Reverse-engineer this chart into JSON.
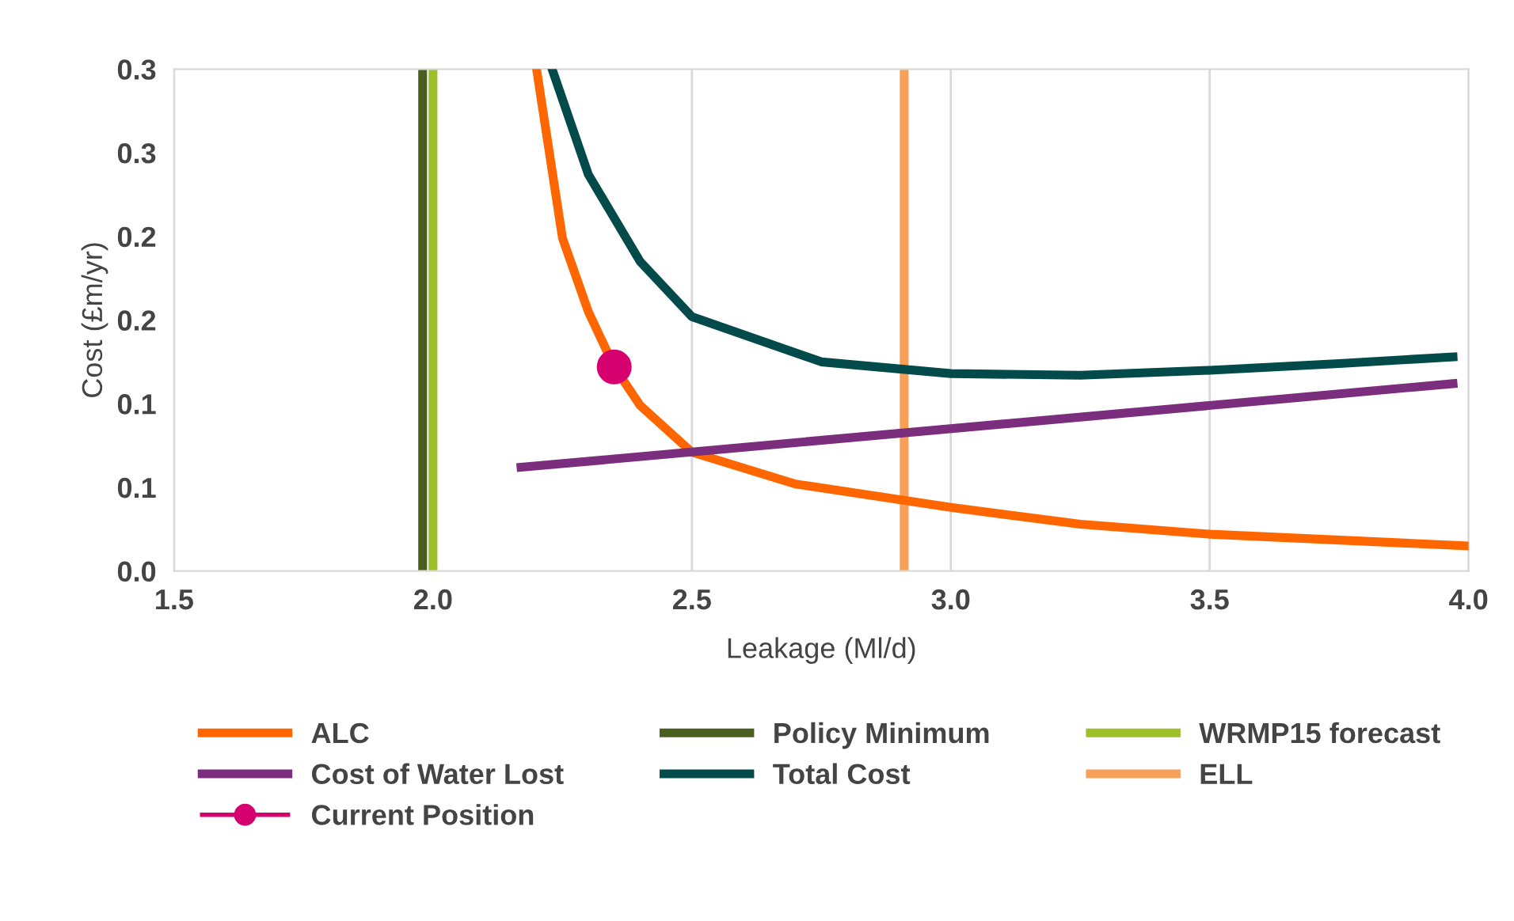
{
  "chart_data": {
    "type": "line",
    "xlabel": "Leakage (Ml/d)",
    "ylabel": "Cost (£m/yr)",
    "xlim": [
      1.5,
      4.0
    ],
    "xticks": [
      1.5,
      {
        "value": 2,
        "label": "2.0"
      },
      2.5,
      {
        "value": 3,
        "label": "3.0"
      },
      3.5,
      {
        "value": 4,
        "label": "4.0"
      }
    ],
    "ylim": [
      0,
      0.3
    ],
    "yticks": [
      {
        "value": 0,
        "label": "0.0"
      },
      {
        "value": 0.05,
        "label": "0.1"
      },
      {
        "value": 0.1,
        "label": "0.1"
      },
      {
        "value": 0.15,
        "label": "0.2"
      },
      {
        "value": 0.2,
        "label": "0.2"
      },
      {
        "value": 0.25,
        "label": "0.3"
      },
      {
        "value": 0.3,
        "label": "0.3"
      }
    ],
    "grid": "x",
    "legend": "bottom",
    "marker": "none",
    "series": [
      {
        "name": "ALC",
        "color": "#ff6600",
        "x": [
          2.2,
          2.25,
          2.3,
          2.35,
          2.4,
          2.5,
          2.7,
          3.0,
          3.25,
          3.5,
          4.0
        ],
        "values": [
          0.3,
          0.199,
          0.155,
          0.122,
          0.099,
          0.071,
          0.052,
          0.038,
          0.028,
          0.022,
          0.015
        ]
      },
      {
        "name": "Cost of Water Lost",
        "color": "#7b2d7e",
        "x": [
          2.17,
          3.97
        ],
        "values": [
          0.062,
          0.112
        ]
      },
      {
        "name": "Total Cost",
        "color": "#034b4b",
        "x": [
          2.23,
          2.3,
          2.4,
          2.5,
          2.75,
          3.0,
          3.25,
          3.5,
          3.75,
          3.97
        ],
        "values": [
          0.3,
          0.237,
          0.185,
          0.152,
          0.125,
          0.118,
          0.117,
          0.12,
          0.124,
          0.128
        ]
      },
      {
        "name": "Current Position",
        "color": "#d6006e",
        "type": "scatter",
        "marker": "circle",
        "x": [
          2.35
        ],
        "values": [
          0.122
        ]
      }
    ],
    "ref_lines": [
      {
        "axis": "x",
        "value": 1.98,
        "label": "Policy Minimum",
        "color": "#4a5e1f"
      },
      {
        "axis": "x",
        "value": 2.0,
        "label": "WRMP15 forecast",
        "color": "#9cbf2a"
      },
      {
        "axis": "x",
        "value": 2.91,
        "label": "ELL",
        "color": "#f7a05a"
      }
    ]
  }
}
